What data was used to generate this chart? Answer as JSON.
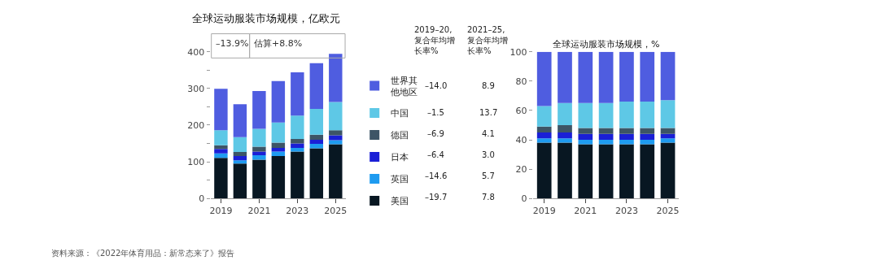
{
  "chart_data": [
    {
      "type": "bar",
      "stacked": true,
      "title": "全球运动服装市场规模，亿欧元",
      "categories": [
        "2019",
        null,
        "2021",
        null,
        "2023",
        null,
        "2025"
      ],
      "series": [
        {
          "name": "美国",
          "color": "#081722",
          "values": [
            111,
            95,
            106,
            116,
            128,
            137,
            148
          ]
        },
        {
          "name": "英国",
          "color": "#1e9bf0",
          "values": [
            12,
            9,
            12,
            12,
            10,
            12,
            11
          ]
        },
        {
          "name": "日本",
          "color": "#1a1fd6",
          "values": [
            12,
            12,
            10,
            10,
            12,
            11,
            13
          ]
        },
        {
          "name": "德国",
          "color": "#3d5566",
          "values": [
            10,
            11,
            13,
            14,
            12,
            14,
            14
          ]
        },
        {
          "name": "中国",
          "color": "#5ec8e6",
          "values": [
            41,
            40,
            49,
            55,
            64,
            70,
            77
          ]
        },
        {
          "name": "世界其他地区",
          "color": "#4f5de0",
          "values": [
            113,
            90,
            103,
            113,
            118,
            125,
            131
          ]
        }
      ],
      "ylim": [
        0,
        400
      ],
      "yticks": [
        0,
        {
          "value": 50,
          "label": null
        },
        100,
        {
          "value": 150,
          "label": null
        },
        200,
        {
          "value": 250,
          "label": null
        },
        300,
        {
          "value": 350,
          "label": null
        },
        400
      ],
      "legend": "right",
      "annotations": [
        "资料来源：《2022年体育用品：新常态来了》报告",
        "–13.9%",
        "估算+8.8%",
        "2019–20,\n复合年均增长率%",
        "2021–25,\n复合年均增长率%",
        "–19.7",
        "7.8",
        "–14.6",
        "5.7",
        "–6.4",
        "3.0",
        "–6.9",
        "4.1",
        "–1.5",
        "13.7",
        "–14.0",
        "8.9"
      ]
    },
    {
      "type": "bar",
      "stacked": true,
      "title": "全球运动服装市场规模，%",
      "categories": [
        "2019",
        null,
        "2021",
        null,
        "2023",
        null,
        "2025"
      ],
      "series": [
        {
          "color": "#081722",
          "values": [
            38,
            38,
            37,
            37,
            37,
            37,
            38
          ]
        },
        {
          "color": "#1e9bf0",
          "values": [
            3,
            3,
            3,
            3,
            3,
            3,
            3
          ]
        },
        {
          "color": "#1a1fd6",
          "values": [
            4,
            4,
            4,
            4,
            4,
            4,
            3
          ]
        },
        {
          "color": "#3d5566",
          "values": [
            4,
            5,
            4,
            4,
            4,
            4,
            4
          ]
        },
        {
          "color": "#5ec8e6",
          "values": [
            14,
            15,
            17,
            17,
            18,
            18,
            19
          ]
        },
        {
          "color": "#4f5de0",
          "values": [
            37,
            35,
            35,
            35,
            34,
            34,
            33
          ]
        }
      ],
      "ylim": [
        0,
        100
      ],
      "yticks": [
        0,
        20,
        40,
        60,
        80,
        100
      ]
    }
  ]
}
